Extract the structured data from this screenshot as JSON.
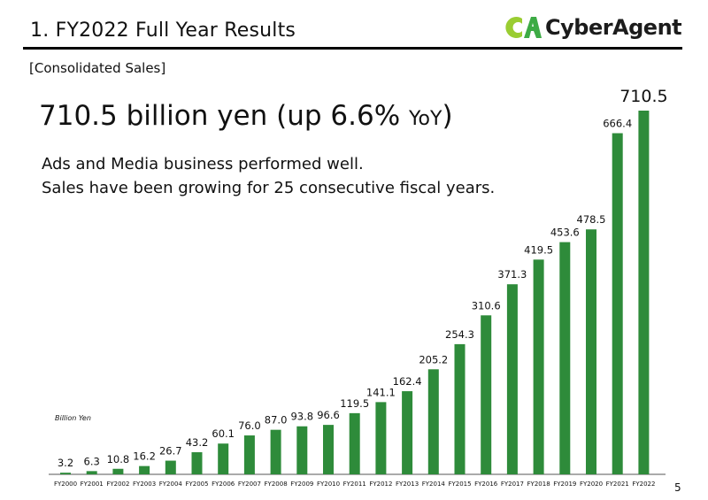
{
  "header": {
    "title": "1. FY2022 Full Year Results",
    "logo_text": "CyberAgent",
    "logo_mark": "CA"
  },
  "section_label": "[Consolidated Sales]",
  "headline": {
    "main": "710.5 billion yen (up 6.6%",
    "yoy": "YoY",
    "close": ")"
  },
  "body": {
    "line1": "Ads and Media business performed well.",
    "line2": "Sales have been growing for 25 consecutive fiscal years."
  },
  "unit_label": "Billion Yen",
  "page_number": "5",
  "colors": {
    "bar": "#2e8b3a",
    "logo_green": "#3dab45",
    "logo_light": "#9acd32"
  },
  "chart_data": {
    "type": "bar",
    "categories": [
      "FY2000",
      "FY2001",
      "FY2002",
      "FY2003",
      "FY2004",
      "FY2005",
      "FY2006",
      "FY2007",
      "FY2008",
      "FY2009",
      "FY2010",
      "FY2011",
      "FY2012",
      "FY2013",
      "FY2014",
      "FY2015",
      "FY2016",
      "FY2017",
      "FY2018",
      "FY2019",
      "FY2020",
      "FY2021",
      "FY2022"
    ],
    "values": [
      3.2,
      6.3,
      10.8,
      16.2,
      26.7,
      43.2,
      60.1,
      76.0,
      87.0,
      93.8,
      96.6,
      119.5,
      141.1,
      162.4,
      205.2,
      254.3,
      310.6,
      371.3,
      419.5,
      453.6,
      478.5,
      666.4,
      710.5
    ],
    "labels": [
      "3.2",
      "6.3",
      "10.8",
      "16.2",
      "26.7",
      "43.2",
      "60.1",
      "76.0",
      "87.0",
      "93.8",
      "96.6",
      "119.5",
      "141.1",
      "162.4",
      "205.2",
      "254.3",
      "310.6",
      "371.3",
      "419.5",
      "453.6",
      "478.5",
      "666.4",
      "710.5"
    ],
    "ylabel": "Billion Yen",
    "ylim": [
      0,
      710.5
    ],
    "grid": false,
    "legend": "none"
  }
}
